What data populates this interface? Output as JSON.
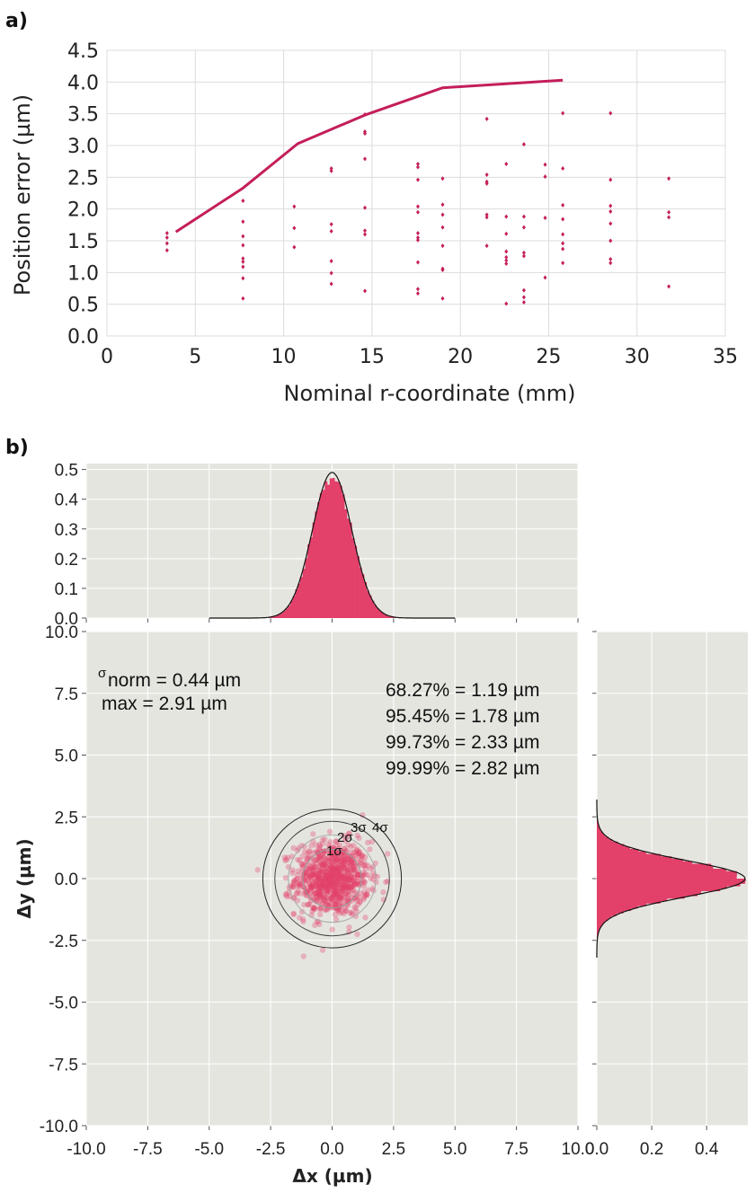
{
  "panel_a_label": "a)",
  "panel_b_label": "b)",
  "chart_data": [
    {
      "id": "a",
      "type": "scatter",
      "xlabel": "Nominal r-coordinate (mm)",
      "ylabel": "Position error (µm)",
      "xlim": [
        0,
        35
      ],
      "ylim": [
        0,
        4.5
      ],
      "xticks": [
        "0",
        "5",
        "10",
        "15",
        "20",
        "25",
        "30",
        "35"
      ],
      "yticks": [
        "0.0",
        "0.5",
        "1.0",
        "1.5",
        "2.0",
        "2.5",
        "3.0",
        "3.5",
        "4.0",
        "4.5"
      ],
      "grid": true,
      "color": "#c41e5a",
      "points": [
        [
          3.4,
          1.62
        ],
        [
          3.4,
          1.55
        ],
        [
          3.4,
          1.46
        ],
        [
          3.4,
          1.35
        ],
        [
          7.7,
          2.13
        ],
        [
          7.7,
          1.8
        ],
        [
          7.7,
          1.57
        ],
        [
          7.7,
          1.43
        ],
        [
          7.7,
          1.22
        ],
        [
          7.7,
          1.17
        ],
        [
          7.7,
          1.09
        ],
        [
          7.7,
          0.91
        ],
        [
          7.7,
          0.59
        ],
        [
          10.6,
          2.04
        ],
        [
          10.6,
          1.7
        ],
        [
          10.6,
          1.4
        ],
        [
          12.7,
          2.64
        ],
        [
          12.7,
          2.6
        ],
        [
          12.7,
          1.76
        ],
        [
          12.7,
          1.65
        ],
        [
          12.7,
          1.18
        ],
        [
          12.7,
          0.99
        ],
        [
          12.7,
          0.82
        ],
        [
          14.6,
          3.49
        ],
        [
          14.6,
          3.22
        ],
        [
          14.6,
          3.19
        ],
        [
          14.6,
          2.79
        ],
        [
          14.6,
          2.02
        ],
        [
          14.6,
          1.66
        ],
        [
          14.6,
          1.6
        ],
        [
          14.6,
          0.71
        ],
        [
          17.6,
          2.71
        ],
        [
          17.6,
          2.66
        ],
        [
          17.6,
          2.46
        ],
        [
          17.6,
          2.04
        ],
        [
          17.6,
          1.95
        ],
        [
          17.6,
          1.62
        ],
        [
          17.6,
          1.55
        ],
        [
          17.6,
          1.51
        ],
        [
          17.6,
          1.16
        ],
        [
          17.6,
          0.74
        ],
        [
          17.6,
          0.67
        ],
        [
          19.0,
          2.48
        ],
        [
          19.0,
          2.07
        ],
        [
          19.0,
          1.91
        ],
        [
          19.0,
          1.71
        ],
        [
          19.0,
          1.42
        ],
        [
          19.0,
          1.06
        ],
        [
          19.0,
          1.04
        ],
        [
          19.0,
          0.59
        ],
        [
          21.5,
          3.42
        ],
        [
          21.5,
          2.54
        ],
        [
          21.5,
          2.43
        ],
        [
          21.5,
          2.4
        ],
        [
          21.5,
          1.91
        ],
        [
          21.5,
          1.87
        ],
        [
          21.5,
          1.42
        ],
        [
          22.6,
          2.71
        ],
        [
          22.6,
          1.88
        ],
        [
          22.6,
          1.61
        ],
        [
          22.6,
          1.33
        ],
        [
          22.6,
          1.24
        ],
        [
          22.6,
          1.19
        ],
        [
          22.6,
          1.14
        ],
        [
          22.6,
          0.51
        ],
        [
          23.6,
          3.02
        ],
        [
          23.6,
          1.88
        ],
        [
          23.6,
          1.71
        ],
        [
          23.6,
          1.31
        ],
        [
          23.6,
          1.26
        ],
        [
          23.6,
          0.72
        ],
        [
          23.6,
          0.61
        ],
        [
          23.6,
          0.53
        ],
        [
          24.8,
          2.7
        ],
        [
          24.8,
          2.51
        ],
        [
          24.8,
          1.86
        ],
        [
          24.8,
          0.92
        ],
        [
          25.8,
          3.51
        ],
        [
          25.8,
          2.64
        ],
        [
          25.8,
          2.06
        ],
        [
          25.8,
          1.84
        ],
        [
          25.8,
          1.6
        ],
        [
          25.8,
          1.46
        ],
        [
          25.8,
          1.37
        ],
        [
          25.8,
          1.15
        ],
        [
          28.5,
          3.51
        ],
        [
          28.5,
          2.46
        ],
        [
          28.5,
          2.05
        ],
        [
          28.5,
          1.96
        ],
        [
          28.5,
          1.77
        ],
        [
          28.5,
          1.5
        ],
        [
          28.5,
          1.21
        ],
        [
          28.5,
          1.15
        ],
        [
          31.8,
          2.48
        ],
        [
          31.8,
          1.95
        ],
        [
          31.8,
          1.87
        ],
        [
          31.8,
          0.78
        ]
      ],
      "envelope": [
        [
          3.9,
          1.64
        ],
        [
          7.7,
          2.33
        ],
        [
          10.8,
          3.03
        ],
        [
          14.6,
          3.48
        ],
        [
          19.0,
          3.91
        ],
        [
          25.8,
          4.03
        ]
      ]
    },
    {
      "id": "b-main",
      "type": "scatter",
      "xlabel": "Δx (µm)",
      "ylabel": "Δy (µm)",
      "xlim": [
        -10,
        10
      ],
      "ylim": [
        -10,
        10
      ],
      "xticks": [
        "-10.0",
        "-7.5",
        "-5.0",
        "-2.5",
        "0.0",
        "2.5",
        "5.0",
        "7.5",
        "10.0"
      ],
      "yticks": [
        "-10.0",
        "-7.5",
        "-5.0",
        "-2.5",
        "0.0",
        "2.5",
        "5.0",
        "7.5",
        "10.0"
      ],
      "grid": true,
      "sigma_norm": 0.44,
      "circle_radii": [
        1.19,
        1.78,
        2.33,
        2.82
      ],
      "circle_labels": [
        "1σ",
        "2σ",
        "3σ",
        "4σ"
      ],
      "annotations": {
        "sigma_prefix": "σ",
        "sigma_line": "norm = 0.44 µm",
        "max_line": "max = 2.91 µm",
        "p68": "68.27% = 1.19 µm",
        "p95": "95.45% = 1.78 µm",
        "p99_7": "99.73% = 2.33 µm",
        "p99_99": "99.99% = 2.82 µm"
      }
    },
    {
      "id": "b-top",
      "type": "bar",
      "title": "",
      "xlim": [
        -10,
        10
      ],
      "ylim": [
        0,
        0.52
      ],
      "yticks": [
        "0.0",
        "0.1",
        "0.2",
        "0.3",
        "0.4",
        "0.5"
      ],
      "distribution": "normal",
      "mean": 0,
      "sigma": 0.8,
      "peak_density": 0.49
    },
    {
      "id": "b-right",
      "type": "bar",
      "xlim": [
        0,
        0.55
      ],
      "ylim": [
        -10,
        10
      ],
      "xticks": [
        "0.0",
        "0.2",
        "0.4"
      ],
      "distribution": "normal",
      "mean": 0,
      "sigma": 0.73,
      "peak_density": 0.54
    }
  ],
  "colors": {
    "accent": "#c41e5a",
    "histogram": "#e3406a",
    "panel_bg": "#e5e5e0",
    "grid_a": "#dcdcdc",
    "grid_b": "#ffffff"
  }
}
